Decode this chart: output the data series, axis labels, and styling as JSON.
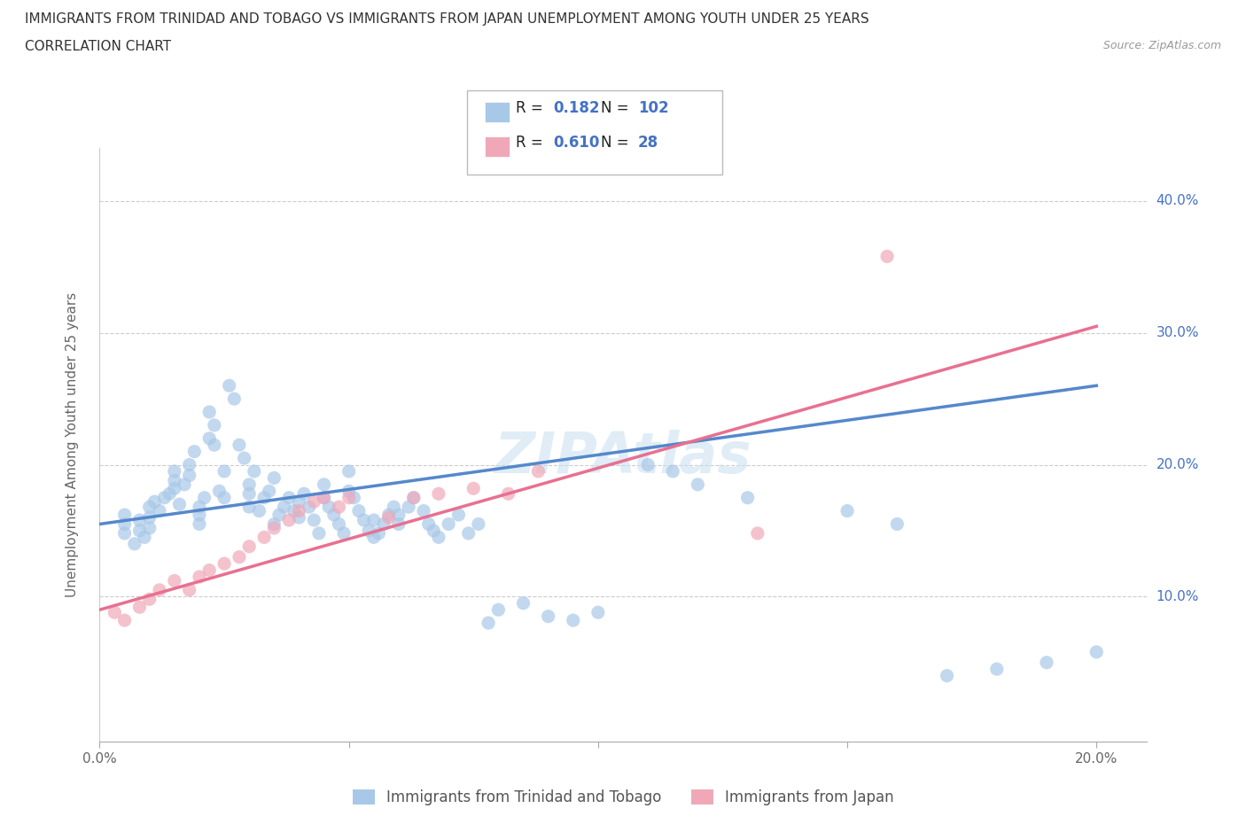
{
  "title_line1": "IMMIGRANTS FROM TRINIDAD AND TOBAGO VS IMMIGRANTS FROM JAPAN UNEMPLOYMENT AMONG YOUTH UNDER 25 YEARS",
  "title_line2": "CORRELATION CHART",
  "source_text": "Source: ZipAtlas.com",
  "watermark": "ZIPAtlas",
  "ylabel": "Unemployment Among Youth under 25 years",
  "xlim": [
    0.0,
    0.21
  ],
  "ylim": [
    -0.01,
    0.44
  ],
  "xticks": [
    0.0,
    0.05,
    0.1,
    0.15,
    0.2
  ],
  "xtick_labels": [
    "0.0%",
    "",
    "",
    "",
    "20.0%"
  ],
  "ytick_labels_right": [
    "10.0%",
    "20.0%",
    "30.0%",
    "40.0%"
  ],
  "ytick_vals": [
    0.1,
    0.2,
    0.3,
    0.4
  ],
  "legend_R1": "0.182",
  "legend_N1": "102",
  "legend_R2": "0.610",
  "legend_N2": "28",
  "color_blue": "#a8c8e8",
  "color_pink": "#f0a8b8",
  "color_blue_line": "#5588cc",
  "color_pink_line": "#e87090",
  "color_blue_text": "#4472c4",
  "trend_blue": [
    0.0,
    0.155,
    0.2,
    0.26
  ],
  "trend_pink": [
    0.0,
    0.09,
    0.2,
    0.305
  ],
  "blue_scatter_x": [
    0.005,
    0.005,
    0.005,
    0.007,
    0.008,
    0.008,
    0.009,
    0.01,
    0.01,
    0.01,
    0.011,
    0.012,
    0.013,
    0.014,
    0.015,
    0.015,
    0.015,
    0.016,
    0.017,
    0.018,
    0.018,
    0.019,
    0.02,
    0.02,
    0.02,
    0.021,
    0.022,
    0.022,
    0.023,
    0.023,
    0.024,
    0.025,
    0.025,
    0.026,
    0.027,
    0.028,
    0.029,
    0.03,
    0.03,
    0.03,
    0.031,
    0.032,
    0.033,
    0.034,
    0.035,
    0.035,
    0.036,
    0.037,
    0.038,
    0.039,
    0.04,
    0.04,
    0.041,
    0.042,
    0.043,
    0.044,
    0.045,
    0.045,
    0.046,
    0.047,
    0.048,
    0.049,
    0.05,
    0.05,
    0.051,
    0.052,
    0.053,
    0.054,
    0.055,
    0.055,
    0.056,
    0.057,
    0.058,
    0.059,
    0.06,
    0.06,
    0.062,
    0.063,
    0.065,
    0.066,
    0.067,
    0.068,
    0.07,
    0.072,
    0.074,
    0.076,
    0.078,
    0.08,
    0.085,
    0.09,
    0.095,
    0.1,
    0.11,
    0.115,
    0.12,
    0.13,
    0.15,
    0.16,
    0.17,
    0.18,
    0.19,
    0.2
  ],
  "blue_scatter_y": [
    0.155,
    0.148,
    0.162,
    0.14,
    0.15,
    0.158,
    0.145,
    0.152,
    0.16,
    0.168,
    0.172,
    0.165,
    0.175,
    0.178,
    0.182,
    0.188,
    0.195,
    0.17,
    0.185,
    0.192,
    0.2,
    0.21,
    0.155,
    0.162,
    0.168,
    0.175,
    0.22,
    0.24,
    0.23,
    0.215,
    0.18,
    0.175,
    0.195,
    0.26,
    0.25,
    0.215,
    0.205,
    0.168,
    0.178,
    0.185,
    0.195,
    0.165,
    0.175,
    0.18,
    0.19,
    0.155,
    0.162,
    0.168,
    0.175,
    0.165,
    0.16,
    0.172,
    0.178,
    0.168,
    0.158,
    0.148,
    0.185,
    0.175,
    0.168,
    0.162,
    0.155,
    0.148,
    0.195,
    0.18,
    0.175,
    0.165,
    0.158,
    0.15,
    0.145,
    0.158,
    0.148,
    0.155,
    0.162,
    0.168,
    0.155,
    0.162,
    0.168,
    0.175,
    0.165,
    0.155,
    0.15,
    0.145,
    0.155,
    0.162,
    0.148,
    0.155,
    0.08,
    0.09,
    0.095,
    0.085,
    0.082,
    0.088,
    0.2,
    0.195,
    0.185,
    0.175,
    0.165,
    0.155,
    0.04,
    0.045,
    0.05,
    0.058
  ],
  "pink_scatter_x": [
    0.003,
    0.005,
    0.008,
    0.01,
    0.012,
    0.015,
    0.018,
    0.02,
    0.022,
    0.025,
    0.028,
    0.03,
    0.033,
    0.035,
    0.038,
    0.04,
    0.043,
    0.045,
    0.048,
    0.05,
    0.058,
    0.063,
    0.068,
    0.075,
    0.082,
    0.088,
    0.132,
    0.158
  ],
  "pink_scatter_y": [
    0.088,
    0.082,
    0.092,
    0.098,
    0.105,
    0.112,
    0.105,
    0.115,
    0.12,
    0.125,
    0.13,
    0.138,
    0.145,
    0.152,
    0.158,
    0.165,
    0.172,
    0.175,
    0.168,
    0.175,
    0.16,
    0.175,
    0.178,
    0.182,
    0.178,
    0.195,
    0.148,
    0.358
  ]
}
